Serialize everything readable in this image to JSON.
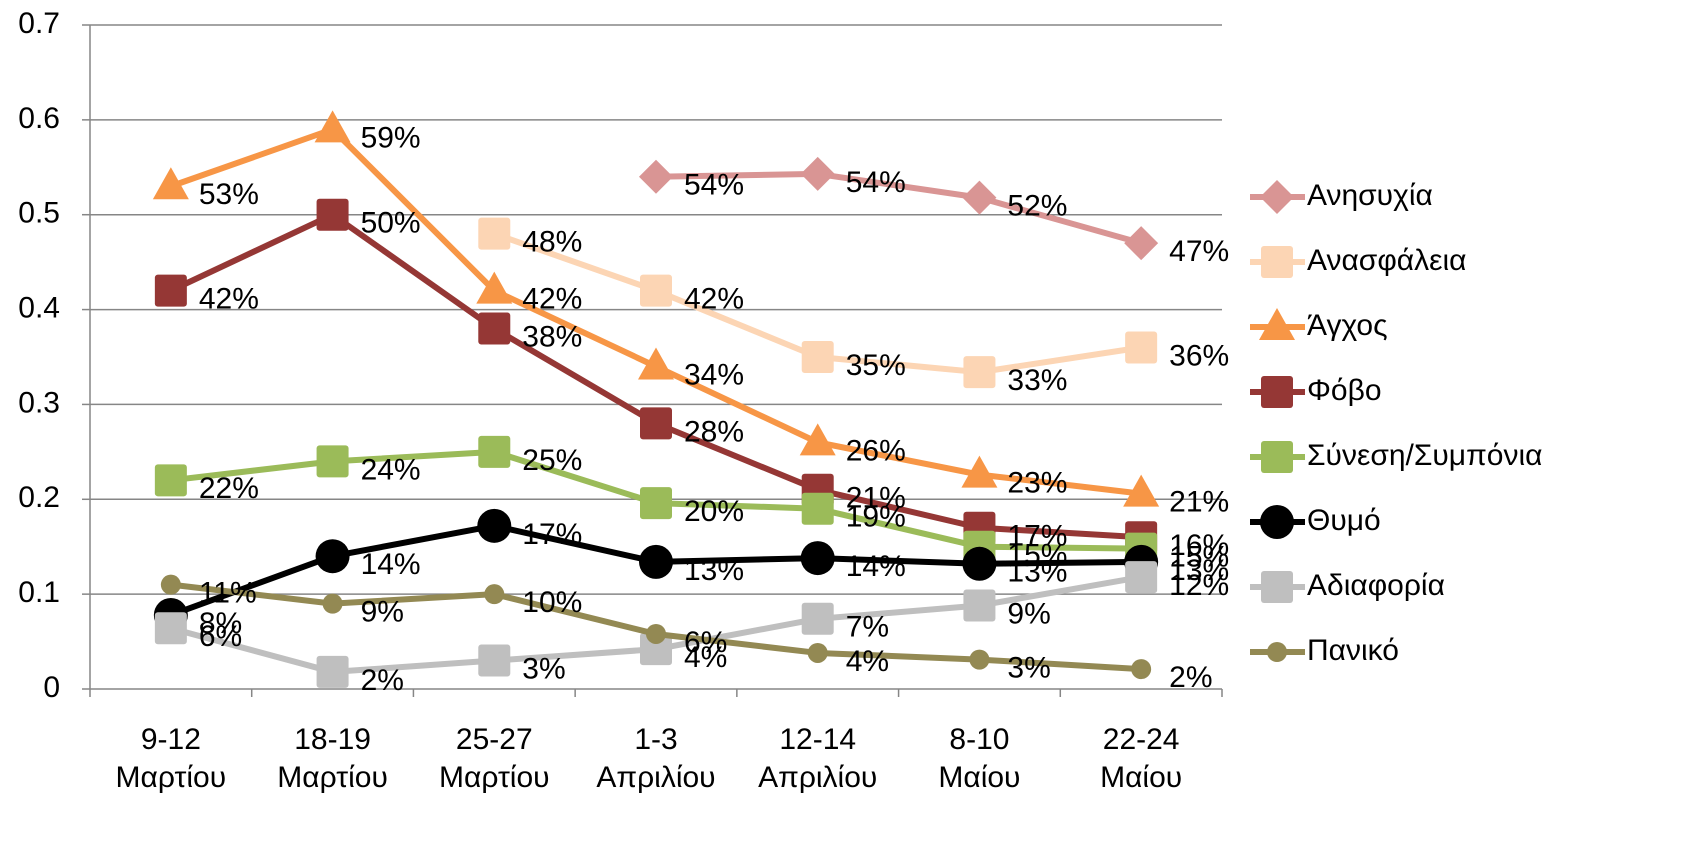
{
  "chart_data": {
    "type": "line",
    "categories": [
      [
        "9-12",
        "Μαρτίου"
      ],
      [
        "18-19",
        "Μαρτίου"
      ],
      [
        "25-27",
        "Μαρτίου"
      ],
      [
        "1-3",
        "Απριλίου"
      ],
      [
        "12-14",
        "Απριλίου"
      ],
      [
        "8-10",
        "Μαίου"
      ],
      [
        "22-24",
        "Μαίου"
      ]
    ],
    "ylim": [
      0,
      0.7
    ],
    "yticks": [
      0,
      0.1,
      0.2,
      0.3,
      0.4,
      0.5,
      0.6,
      0.7
    ],
    "grid": true,
    "legend": "right",
    "series": [
      {
        "name": "Ανησυχία",
        "color": "#d99594",
        "marker": "diamond",
        "values": [
          null,
          null,
          null,
          0.54,
          0.543,
          0.518,
          0.47
        ],
        "value_labels": [
          null,
          null,
          null,
          "54%",
          "54%",
          "52%",
          "47%"
        ]
      },
      {
        "name": "Ανασφάλεια",
        "color": "#fcd5b4",
        "marker": "square",
        "values": [
          null,
          null,
          0.48,
          0.42,
          0.35,
          0.334,
          0.36
        ],
        "value_labels": [
          null,
          null,
          "48%",
          "42%",
          "35%",
          "33%",
          "36%"
        ]
      },
      {
        "name": "Άγχος",
        "color": "#f79646",
        "marker": "triangle",
        "values": [
          0.53,
          0.59,
          0.42,
          0.34,
          0.26,
          0.226,
          0.206
        ],
        "value_labels": [
          "53%",
          "59%",
          "42%",
          "34%",
          "26%",
          "23%",
          "21%"
        ]
      },
      {
        "name": "Φόβο",
        "color": "#953735",
        "marker": "square",
        "values": [
          0.42,
          0.5,
          0.38,
          0.28,
          0.21,
          0.17,
          0.16
        ],
        "value_labels": [
          "42%",
          "50%",
          "38%",
          "28%",
          "21%",
          "17%",
          "16%"
        ]
      },
      {
        "name": "Σύνεση/Συμπόνια",
        "color": "#9bbb59",
        "marker": "square",
        "values": [
          0.22,
          0.24,
          0.25,
          0.196,
          0.19,
          0.15,
          0.148
        ],
        "value_labels": [
          "22%",
          "24%",
          "25%",
          "20%",
          "19%",
          "15%",
          "15%"
        ]
      },
      {
        "name": "Θυμό",
        "color": "#000000",
        "marker": "circle",
        "values": [
          0.078,
          0.14,
          0.172,
          0.134,
          0.138,
          0.132,
          0.134
        ],
        "value_labels": [
          "8%",
          "14%",
          "17%",
          "13%",
          "14%",
          "13%",
          "13%"
        ]
      },
      {
        "name": "Αδιαφορία",
        "color": "#bfbfbf",
        "marker": "square",
        "values": [
          0.064,
          0.018,
          0.03,
          0.042,
          0.074,
          0.088,
          0.118
        ],
        "value_labels": [
          "6%",
          "2%",
          "3%",
          "4%",
          "7%",
          "9%",
          "12%"
        ]
      },
      {
        "name": "Πανικό",
        "color": "#938953",
        "marker": "smallcircle",
        "values": [
          0.11,
          0.09,
          0.1,
          0.058,
          0.038,
          0.031,
          0.021
        ],
        "value_labels": [
          "11%",
          "9%",
          "10%",
          "6%",
          "4%",
          "3%",
          "2%"
        ]
      }
    ]
  }
}
